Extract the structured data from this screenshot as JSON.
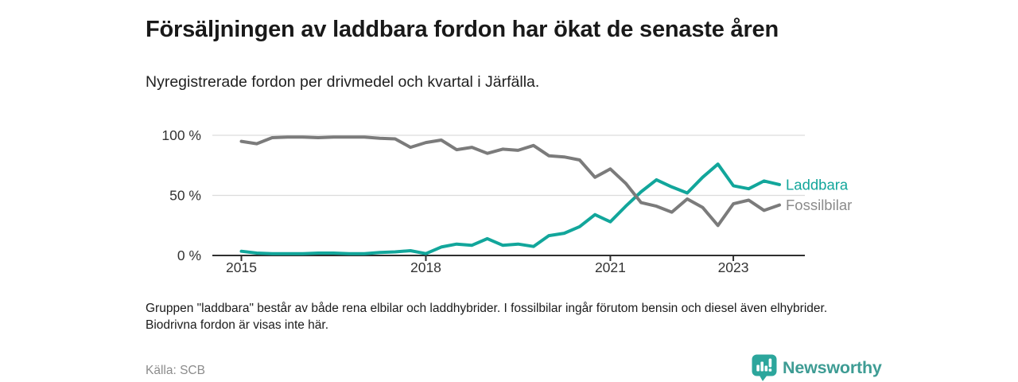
{
  "title": "Försäljningen av laddbara fordon har ökat de senaste åren",
  "subtitle": "Nyregistrerade fordon per drivmedel och kvartal i Järfälla.",
  "footnote": "Gruppen \"laddbara\" består av både rena elbilar och laddhybrider. I fossilbilar ingår förutom bensin och diesel även elhybrider. Biodrivna fordon är visas inte här.",
  "source": "Källa: SCB",
  "branding": {
    "name": "Newsworthy",
    "icon": "bar-chart-pin-icon",
    "icon_color": "#2ca69c",
    "text_color": "#3e9c94"
  },
  "colors": {
    "laddbara": "#12a69b",
    "fossilbilar": "#7b7b7b",
    "fossilbilar_label": "#8b8b8b",
    "grid": "#dcdcdc",
    "axis": "#2f2f2f",
    "tick_text": "#333333"
  },
  "chart_data": {
    "type": "line",
    "title": "Nyregistrerade fordon per drivmedel och kvartal i Järfälla",
    "x_start": "2015 Q1",
    "x_end": "2023 Q4",
    "x_frequency": "quarterly",
    "ylim": [
      0,
      100
    ],
    "grid": "horizontal",
    "legend_position": "line-end-right",
    "y_ticks": [
      {
        "label": "0 %",
        "value": 0
      },
      {
        "label": "50 %",
        "value": 50
      },
      {
        "label": "100 %",
        "value": 100
      }
    ],
    "x_ticks": [
      {
        "label": "2015",
        "index": 0
      },
      {
        "label": "2018",
        "index": 12
      },
      {
        "label": "2021",
        "index": 24
      },
      {
        "label": "2023",
        "index": 32
      }
    ],
    "series": [
      {
        "name": "Laddbara",
        "color": "#12a69b",
        "label_color": "#12a69b",
        "values": [
          3.5,
          2,
          1.5,
          1.5,
          1.5,
          2,
          2,
          1.5,
          1.5,
          2.5,
          3,
          4,
          1.5,
          7,
          9.5,
          8.5,
          14,
          8.5,
          9.5,
          7.5,
          16.5,
          18.5,
          24,
          34,
          28,
          41,
          53,
          63,
          57,
          52,
          65,
          76,
          58,
          55.5,
          62,
          59
        ]
      },
      {
        "name": "Fossilbilar",
        "color": "#7b7b7b",
        "label_color": "#8b8b8b",
        "values": [
          95,
          93,
          98,
          98.5,
          98.5,
          98,
          98.5,
          98.5,
          98.5,
          97.5,
          97,
          90,
          94,
          96,
          88,
          90,
          85,
          88.5,
          87.5,
          91.5,
          83,
          82,
          79.5,
          65,
          72,
          60,
          44,
          41,
          36,
          47,
          40,
          25,
          43,
          46,
          37.5,
          42
        ]
      }
    ]
  }
}
